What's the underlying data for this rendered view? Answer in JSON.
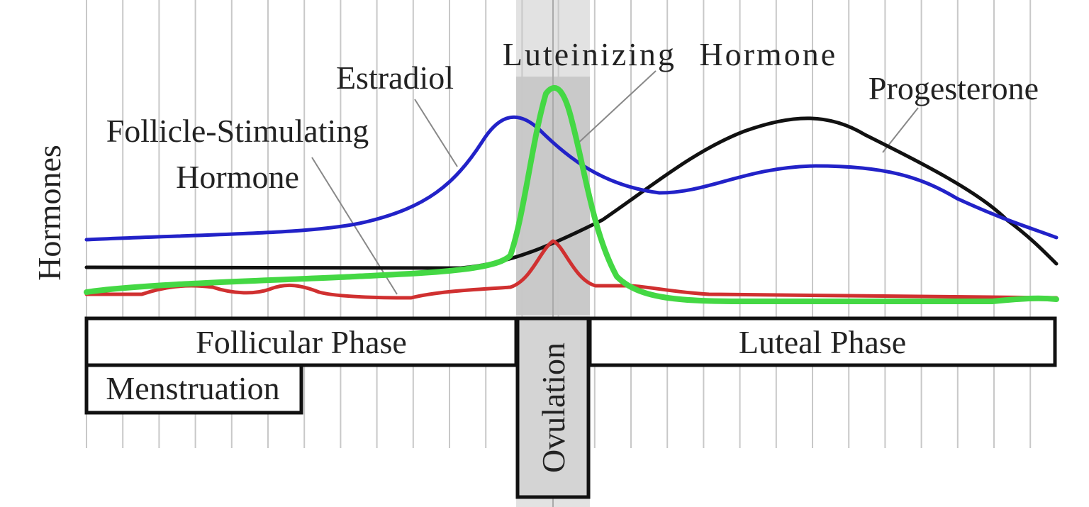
{
  "y_axis_label": "Hormones",
  "curves": {
    "fsh": {
      "label_lines": [
        "Follicle-Stimulating",
        "Hormone"
      ]
    },
    "estradiol": {
      "label": "Estradiol"
    },
    "lh": {
      "label": "Luteinizing Hormone"
    },
    "progesterone": {
      "label": "Progesterone"
    }
  },
  "phases": {
    "follicular": "Follicular Phase",
    "ovulation": "Ovulation",
    "luteal": "Luteal Phase",
    "menstruation": "Menstruation"
  }
}
